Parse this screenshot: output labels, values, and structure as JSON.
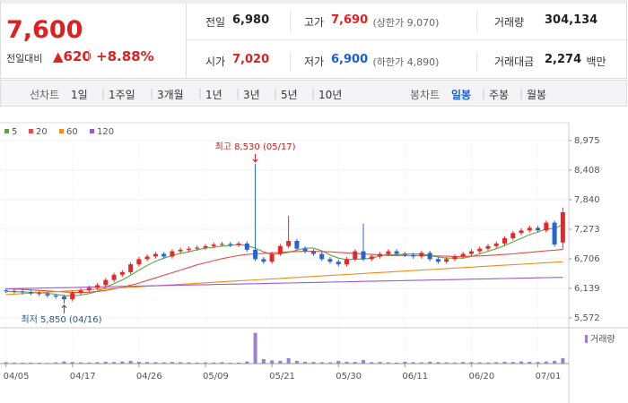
{
  "header": {
    "price": "7,600",
    "price_color": "#e0201f",
    "change_label": "전일대비",
    "change": "▲620",
    "change_pct": "+8.88%",
    "stats": [
      {
        "label": "전일",
        "value": "6,980",
        "color": "#222"
      },
      {
        "label": "고가",
        "value": "7,690",
        "note": "(상한가 9,070)",
        "color": "#e0201f"
      },
      {
        "label": "거래량",
        "value": "304,134",
        "color": "#222"
      },
      {
        "label": "시가",
        "value": "7,020",
        "color": "#e0201f"
      },
      {
        "label": "저가",
        "value": "6,900",
        "note": "(하한가 4,890)",
        "color": "#1a5fd0"
      },
      {
        "label": "거래대금",
        "value": "2,274",
        "unit": "백만",
        "color": "#222"
      }
    ]
  },
  "toolbar": {
    "line_label": "선차트",
    "line_periods": [
      "1일",
      "1주일",
      "3개월",
      "1년",
      "3년",
      "5년",
      "10년"
    ],
    "candle_label": "봉차트",
    "candle_periods": [
      "일봉",
      "주봉",
      "월봉"
    ],
    "active": "일봉"
  },
  "chart_data": {
    "type": "candlestick",
    "categories": [
      "04/05",
      null,
      null,
      null,
      null,
      null,
      null,
      null,
      "04/17",
      null,
      null,
      null,
      null,
      null,
      null,
      null,
      "04/26",
      null,
      null,
      null,
      null,
      null,
      null,
      null,
      "05/09",
      null,
      null,
      null,
      null,
      null,
      null,
      null,
      "05/21",
      null,
      null,
      null,
      null,
      null,
      null,
      null,
      "05/30",
      null,
      null,
      null,
      null,
      null,
      null,
      null,
      "06/11",
      null,
      null,
      null,
      null,
      null,
      null,
      null,
      "06/20",
      null,
      null,
      null,
      null,
      null,
      null,
      null,
      "07/01",
      null,
      null,
      null
    ],
    "open": [
      6100,
      6090,
      6080,
      6060,
      6050,
      6030,
      6000,
      5980,
      5930,
      6050,
      6100,
      6150,
      6200,
      6300,
      6400,
      6450,
      6600,
      6700,
      6750,
      6800,
      6750,
      6850,
      6880,
      6900,
      6920,
      6950,
      6980,
      6990,
      6970,
      7000,
      6880,
      6700,
      6650,
      6800,
      6950,
      7050,
      6900,
      6850,
      6800,
      6700,
      6650,
      6600,
      6700,
      6850,
      6700,
      6750,
      6800,
      6850,
      6800,
      6780,
      6750,
      6820,
      6700,
      6650,
      6700,
      6750,
      6800,
      6850,
      6900,
      6950,
      7000,
      7100,
      7200,
      7250,
      7300,
      7250,
      7400,
      7020
    ],
    "high": [
      6140,
      6130,
      6120,
      6100,
      6090,
      6070,
      6040,
      6020,
      6090,
      6140,
      6190,
      6240,
      6340,
      6440,
      6490,
      6640,
      6740,
      6790,
      6840,
      6840,
      6890,
      6920,
      6940,
      6960,
      6990,
      7020,
      7030,
      7030,
      7040,
      7040,
      8530,
      6740,
      6840,
      6990,
      7530,
      7090,
      6940,
      6890,
      6840,
      6740,
      6690,
      6740,
      6890,
      7380,
      6790,
      6840,
      6890,
      6890,
      6840,
      6820,
      6860,
      6860,
      6740,
      6740,
      6790,
      6840,
      6890,
      6940,
      6990,
      7040,
      7140,
      7240,
      7290,
      7340,
      7340,
      7440,
      7440,
      7690
    ],
    "low": [
      6050,
      6040,
      6020,
      6010,
      5990,
      5960,
      5940,
      5850,
      5890,
      6010,
      6060,
      6110,
      6160,
      6260,
      6360,
      6410,
      6560,
      6660,
      6710,
      6710,
      6710,
      6810,
      6840,
      6860,
      6880,
      6910,
      6940,
      6930,
      6930,
      6840,
      6660,
      6610,
      6610,
      6760,
      6910,
      6860,
      6810,
      6760,
      6660,
      6610,
      6560,
      6560,
      6660,
      6660,
      6660,
      6710,
      6760,
      6760,
      6740,
      6710,
      6710,
      6660,
      6610,
      6610,
      6660,
      6710,
      6760,
      6810,
      6860,
      6910,
      6960,
      7060,
      7160,
      7210,
      7210,
      7210,
      6940,
      6900
    ],
    "close": [
      6090,
      6080,
      6060,
      6050,
      6030,
      6000,
      5980,
      5930,
      6050,
      6100,
      6150,
      6200,
      6300,
      6400,
      6450,
      6600,
      6700,
      6750,
      6800,
      6750,
      6850,
      6880,
      6900,
      6920,
      6950,
      6980,
      6990,
      6970,
      7000,
      6880,
      6700,
      6650,
      6800,
      6950,
      7050,
      6900,
      6850,
      6800,
      6700,
      6650,
      6600,
      6700,
      6850,
      6700,
      6750,
      6800,
      6850,
      6800,
      6780,
      6750,
      6820,
      6700,
      6650,
      6700,
      6750,
      6800,
      6850,
      6900,
      6950,
      7000,
      7100,
      7200,
      7250,
      7300,
      7250,
      7400,
      6980,
      7600
    ],
    "volume": [
      80000,
      60000,
      50000,
      60000,
      50000,
      40000,
      70000,
      120000,
      90000,
      70000,
      60000,
      80000,
      100000,
      90000,
      120000,
      150000,
      100000,
      90000,
      80000,
      70000,
      90000,
      80000,
      70000,
      60000,
      70000,
      60000,
      80000,
      50000,
      60000,
      120000,
      1720000,
      250000,
      180000,
      150000,
      300000,
      150000,
      100000,
      90000,
      80000,
      70000,
      150000,
      100000,
      90000,
      200000,
      80000,
      90000,
      70000,
      60000,
      100000,
      80000,
      70000,
      110000,
      80000,
      70000,
      60000,
      90000,
      80000,
      70000,
      60000,
      80000,
      100000,
      90000,
      120000,
      100000,
      90000,
      120000,
      150000,
      304134
    ],
    "volume_name": "거래량",
    "volume_color": "#9b7fd4",
    "volume_ylim": [
      0,
      1800000
    ],
    "up_color": "#e8262a",
    "down_color": "#2a63d2",
    "series": [
      {
        "name": "5",
        "color": "#5aa83d",
        "values": [
          6080,
          6075,
          6070,
          6065,
          6060,
          6045,
          6025,
          6000,
          5995,
          6010,
          6040,
          6080,
          6160,
          6230,
          6300,
          6390,
          6490,
          6580,
          6660,
          6720,
          6770,
          6810,
          6840,
          6880,
          6910,
          6930,
          6950,
          6960,
          6980,
          6960,
          6910,
          6840,
          6790,
          6800,
          6830,
          6870,
          6910,
          6910,
          6860,
          6780,
          6720,
          6690,
          6700,
          6700,
          6720,
          6760,
          6790,
          6780,
          6800,
          6800,
          6800,
          6770,
          6740,
          6720,
          6720,
          6720,
          6750,
          6800,
          6850,
          6900,
          6960,
          7030,
          7100,
          7170,
          7220,
          7280,
          7290,
          7360
        ]
      },
      {
        "name": "20",
        "color": "#e44b4b",
        "values": [
          6130,
          6125,
          6120,
          6110,
          6100,
          6090,
          6080,
          6070,
          6060,
          6060,
          6065,
          6080,
          6100,
          6130,
          6160,
          6200,
          6240,
          6290,
          6340,
          6390,
          6440,
          6490,
          6540,
          6590,
          6630,
          6670,
          6710,
          6740,
          6770,
          6790,
          6800,
          6810,
          6820,
          6830,
          6840,
          6845,
          6850,
          6850,
          6845,
          6840,
          6830,
          6820,
          6810,
          6800,
          6790,
          6780,
          6770,
          6770,
          6770,
          6770,
          6770,
          6765,
          6760,
          6755,
          6750,
          6750,
          6755,
          6760,
          6770,
          6780,
          6790,
          6800,
          6815,
          6830,
          6845,
          6860,
          6870,
          6890
        ]
      },
      {
        "name": "60",
        "color": "#f08c1e",
        "values": [
          6020,
          6029,
          6039,
          6048,
          6058,
          6067,
          6076,
          6086,
          6095,
          6105,
          6114,
          6123,
          6133,
          6142,
          6152,
          6161,
          6170,
          6180,
          6189,
          6199,
          6208,
          6217,
          6227,
          6236,
          6246,
          6255,
          6264,
          6274,
          6283,
          6293,
          6302,
          6311,
          6321,
          6330,
          6340,
          6349,
          6358,
          6368,
          6377,
          6387,
          6396,
          6405,
          6415,
          6424,
          6434,
          6443,
          6452,
          6462,
          6471,
          6481,
          6490,
          6499,
          6509,
          6518,
          6528,
          6537,
          6546,
          6556,
          6565,
          6575,
          6584,
          6593,
          6603,
          6612,
          6622,
          6631,
          6640,
          6650
        ]
      },
      {
        "name": "120",
        "color": "#9a5ccc",
        "values": [
          6130,
          6133,
          6137,
          6140,
          6143,
          6147,
          6150,
          6153,
          6156,
          6160,
          6163,
          6166,
          6170,
          6173,
          6176,
          6180,
          6183,
          6186,
          6189,
          6193,
          6196,
          6199,
          6203,
          6206,
          6209,
          6213,
          6216,
          6219,
          6222,
          6226,
          6229,
          6232,
          6236,
          6239,
          6242,
          6246,
          6249,
          6252,
          6255,
          6259,
          6262,
          6265,
          6269,
          6272,
          6275,
          6279,
          6282,
          6285,
          6288,
          6292,
          6295,
          6298,
          6302,
          6305,
          6308,
          6312,
          6315,
          6318,
          6321,
          6325,
          6328,
          6331,
          6335,
          6338,
          6341,
          6345,
          6348,
          6351
        ]
      }
    ],
    "ylim": [
      5400,
      9180
    ],
    "yticks": [
      {
        "value": 5572,
        "label": "5,572"
      },
      {
        "value": 6139,
        "label": "6,139"
      },
      {
        "value": 6706,
        "label": "6,706"
      },
      {
        "value": 7273,
        "label": "7,273"
      },
      {
        "value": 7840,
        "label": "7,840"
      },
      {
        "value": 8408,
        "label": "8,408"
      },
      {
        "value": 8975,
        "label": "8,975"
      }
    ],
    "grid": true,
    "high_label": {
      "text": "최고 8,530 (05/17)",
      "color": "#c81e1e"
    },
    "low_label": {
      "text": "최저 5,850 (04/16)",
      "color": "#1e5a8c"
    }
  }
}
